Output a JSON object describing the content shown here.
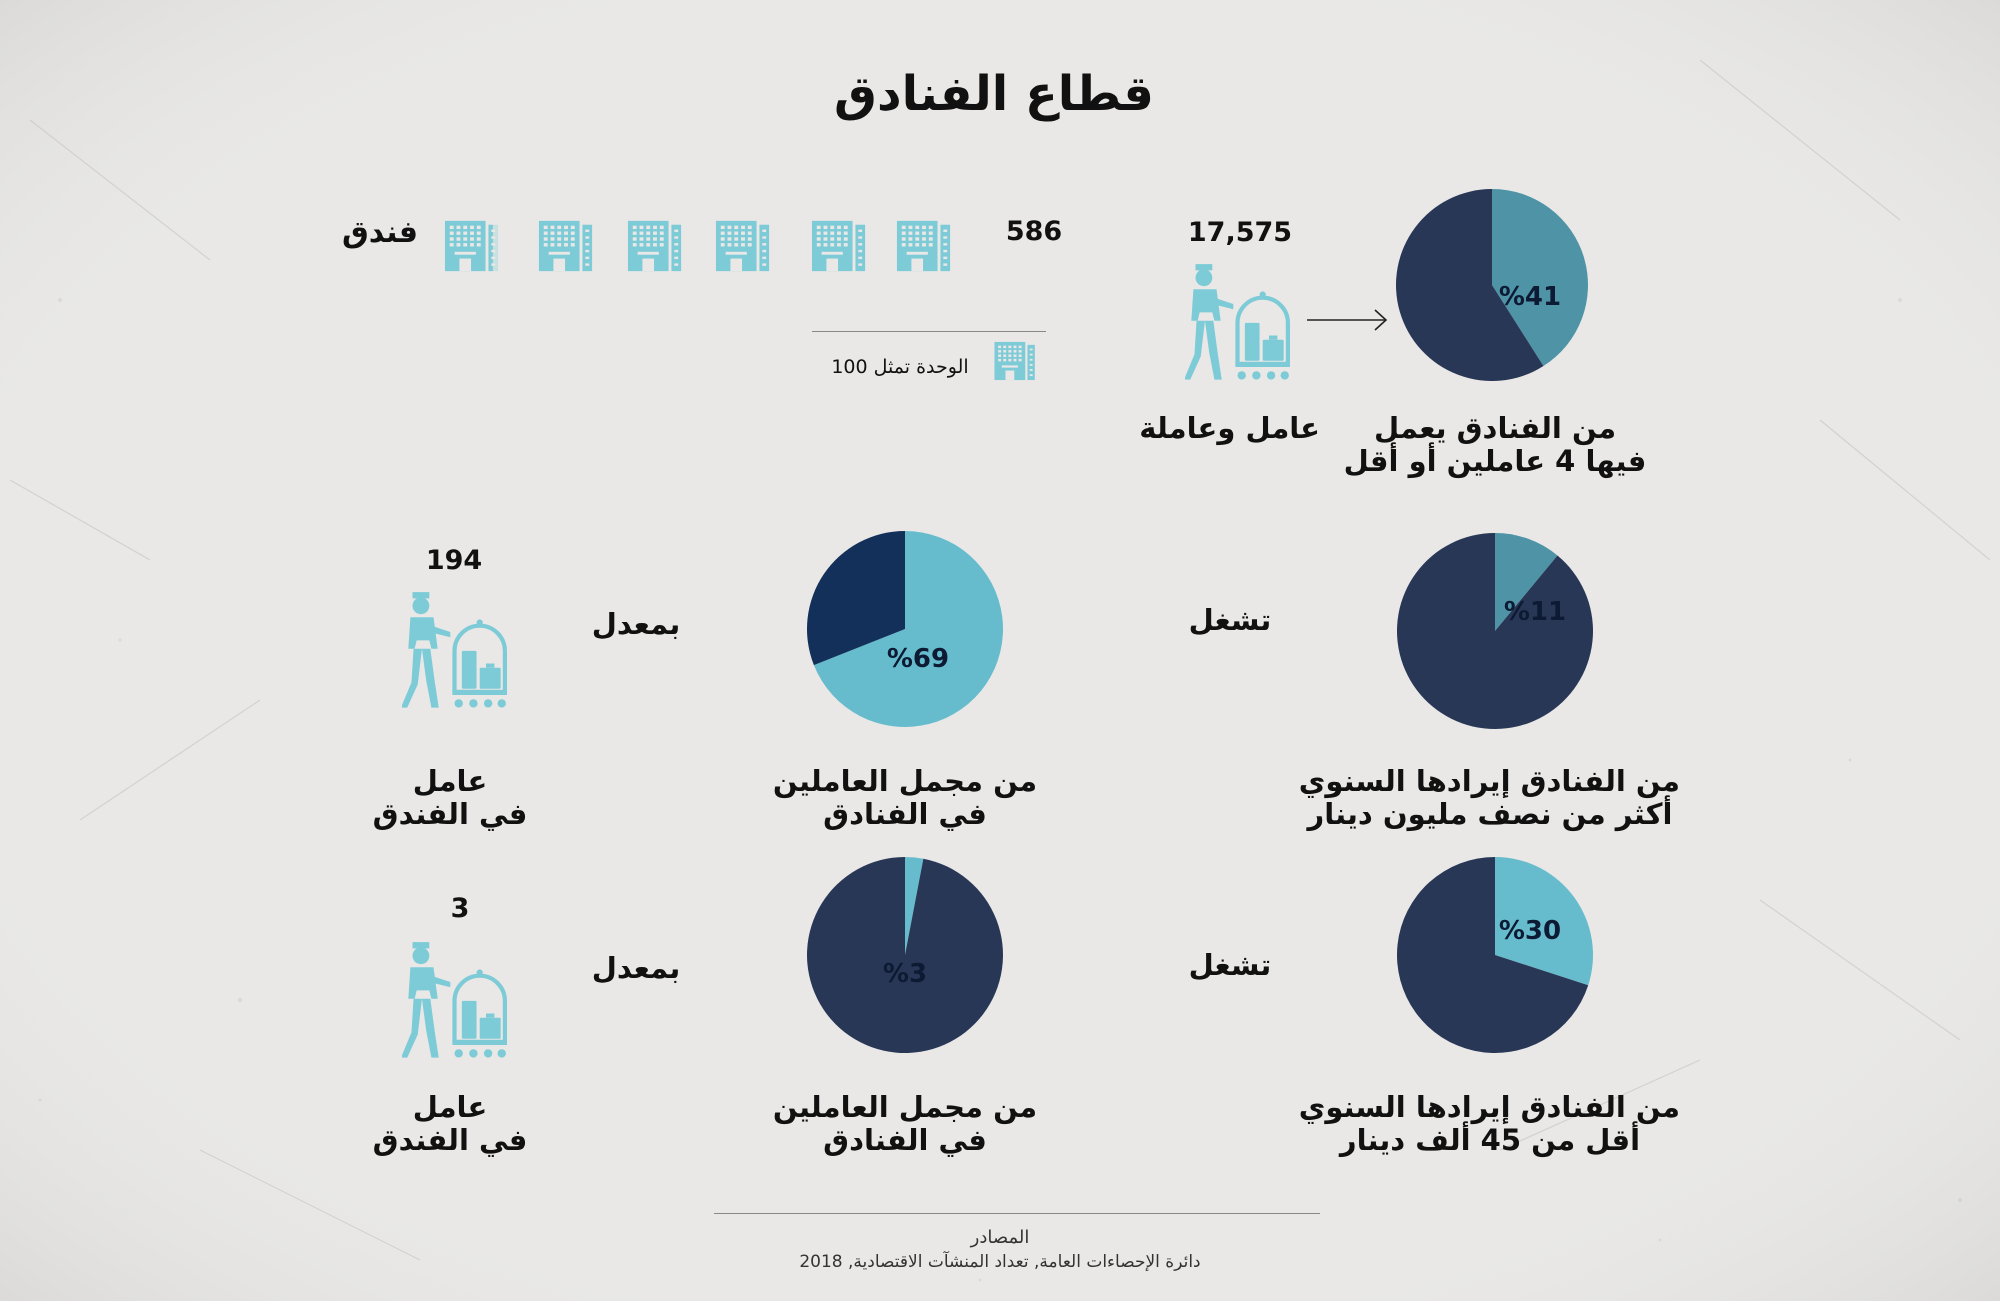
{
  "title": "قطاع الفنادق",
  "colors": {
    "navy": "#293757",
    "navy_dark": "#12305a",
    "teal_mid": "#4f93a6",
    "teal_light": "#66bccd",
    "icon": "#7ecbd8",
    "background": "#e9e8e6"
  },
  "hotels_row": {
    "count": "586",
    "unit_label": "فندق",
    "legend_text": "الوحدة تمثل 100",
    "icons": "hotel-building-icon"
  },
  "workers_top": {
    "count": "17,575",
    "label": "عامل وعاملة",
    "icon": "bellhop-cart-icon"
  },
  "pies": {
    "small_hotels": {
      "caption_l1": "من الفنادق يعمل",
      "caption_l2": "فيها 4 عاملين أو أقل"
    },
    "high_revenue": {
      "caption_l1": "من الفنادق إيرادها السنوي",
      "caption_l2": "أكثر من نصف مليون دينار",
      "verb": "تشغل"
    },
    "high_revenue_workers": {
      "caption_l1": "من مجمل العاملين",
      "caption_l2": "في الفنادق",
      "avg_word": "بمعدل"
    },
    "low_revenue": {
      "caption_l1": "من الفنادق إيرادها السنوي",
      "caption_l2": "أقل من 45 ألف دينار",
      "verb": "تشغل"
    },
    "low_revenue_workers": {
      "caption_l1": "من مجمل العاملين",
      "caption_l2": "في الفنادق",
      "avg_word": "بمعدل"
    }
  },
  "avg_high": {
    "value": "194",
    "label_l1": "عامل",
    "label_l2": "في الفندق"
  },
  "avg_low": {
    "value": "3",
    "label_l1": "عامل",
    "label_l2": "في الفندق"
  },
  "source": {
    "heading": "المصادر",
    "text": "دائرة الإحصاءات العامة, تعداد المنشآت الاقتصادية, 2018"
  },
  "chart_data": [
    {
      "type": "pie",
      "id": "pie-small-hotels",
      "label": "%41",
      "values": [
        41,
        59
      ],
      "colors": [
        "#4f93a6",
        "#293757"
      ]
    },
    {
      "type": "pie",
      "id": "pie-high-revenue",
      "label": "%11",
      "values": [
        11,
        89
      ],
      "colors": [
        "#4f93a6",
        "#293757"
      ]
    },
    {
      "type": "pie",
      "id": "pie-high-revenue-workers",
      "label": "%69",
      "values": [
        69,
        31
      ],
      "colors": [
        "#66bccd",
        "#12305a"
      ]
    },
    {
      "type": "pie",
      "id": "pie-low-revenue",
      "label": "%30",
      "values": [
        30,
        70
      ],
      "colors": [
        "#66bccd",
        "#293757"
      ]
    },
    {
      "type": "pie",
      "id": "pie-low-revenue-workers",
      "label": "%3",
      "values": [
        3,
        97
      ],
      "colors": [
        "#66bccd",
        "#293757"
      ]
    }
  ]
}
